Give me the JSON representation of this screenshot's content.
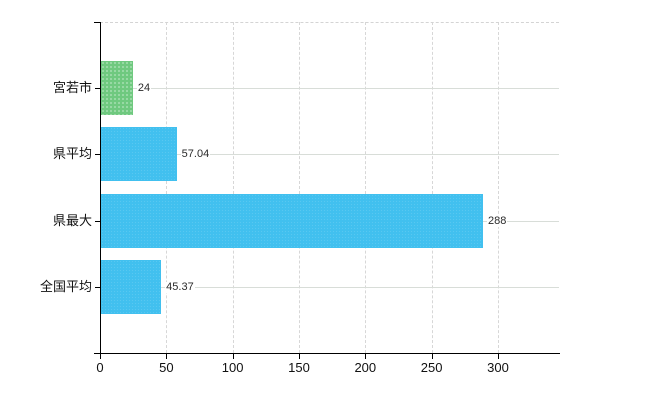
{
  "chart_data": {
    "type": "bar",
    "orientation": "horizontal",
    "title": "",
    "categories": [
      "宮若市",
      "県平均",
      "県最大",
      "全国平均"
    ],
    "values": [
      24,
      57.04,
      288,
      45.37
    ],
    "value_labels": [
      "24",
      "57.04",
      "288",
      "45.37"
    ],
    "bar_colors": [
      "#6fc97f",
      "#41c0ef",
      "#41c0ef",
      "#41c0ef"
    ],
    "bar_textures": [
      "green",
      "blue",
      "blue",
      "blue"
    ],
    "x_ticks": [
      0,
      50,
      100,
      150,
      200,
      250,
      300
    ],
    "x_tick_labels": [
      "0",
      "50",
      "100",
      "150",
      "200",
      "250",
      "300"
    ],
    "xlim": [
      0,
      346
    ],
    "grid": {
      "vertical_style": "dashed",
      "horizontal_style": "solid",
      "top_border_style": "dashed",
      "color": "#d8d8d8",
      "horizontal_at": "category-centers"
    },
    "colors": {
      "background": "#ffffff",
      "axis": "#000000",
      "tick_text": "#111111",
      "value_text": "#2a2a2a",
      "bar_green": "#6fc97f",
      "bar_blue": "#41c0ef"
    },
    "legend": "none"
  }
}
